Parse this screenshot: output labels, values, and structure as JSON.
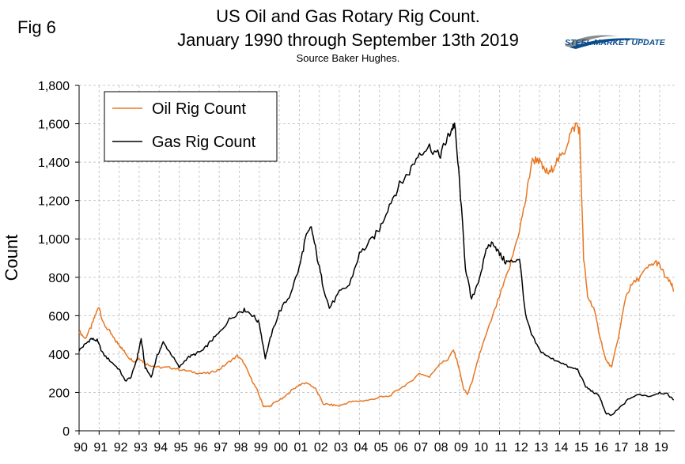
{
  "fig_label": "Fig 6",
  "logo": {
    "line1": "STEEL MARKET UPDATE"
  },
  "colors": {
    "oil": "#E87722",
    "gas": "#000000",
    "grid": "#c8c8c8",
    "accent": "#0a4d8c"
  },
  "chart_data": {
    "type": "line",
    "title": "US Oil and Gas Rotary Rig Count.",
    "subtitle": "January 1990 through September 13th 2019",
    "source": "Source Baker Hughes.",
    "xlabel": "",
    "ylabel": "Count",
    "xlim": [
      1990,
      2019.75
    ],
    "ylim": [
      0,
      1800
    ],
    "yticks": [
      0,
      200,
      400,
      600,
      800,
      1000,
      1200,
      1400,
      1600,
      1800
    ],
    "ytick_labels": [
      "0",
      "200",
      "400",
      "600",
      "800",
      "1,000",
      "1,200",
      "1,400",
      "1,600",
      "1,800"
    ],
    "xtick_labels": [
      "90",
      "91",
      "92",
      "93",
      "94",
      "95",
      "96",
      "97",
      "98",
      "99",
      "00",
      "01",
      "02",
      "03",
      "04",
      "05",
      "06",
      "07",
      "08",
      "09",
      "10",
      "11",
      "12",
      "13",
      "14",
      "15",
      "16",
      "17",
      "18",
      "19"
    ],
    "legend_position": "top-left",
    "series": [
      {
        "name": "Oil Rig Count",
        "color": "#E87722",
        "x": [
          1990.0,
          1990.3,
          1990.6,
          1990.8,
          1991.0,
          1991.2,
          1991.5,
          1991.8,
          1992.0,
          1992.2,
          1992.5,
          1992.8,
          1993.0,
          1993.3,
          1993.6,
          1994.0,
          1994.5,
          1995.0,
          1995.5,
          1996.0,
          1996.5,
          1997.0,
          1997.5,
          1997.9,
          1998.2,
          1998.6,
          1998.9,
          1999.2,
          1999.5,
          1999.8,
          2000.2,
          2000.6,
          2001.0,
          2001.4,
          2001.8,
          2002.2,
          2002.6,
          2003.0,
          2003.5,
          2004.0,
          2004.5,
          2005.0,
          2005.5,
          2006.0,
          2006.5,
          2007.0,
          2007.5,
          2008.0,
          2008.4,
          2008.7,
          2008.9,
          2009.2,
          2009.4,
          2009.7,
          2010.0,
          2010.5,
          2011.0,
          2011.5,
          2012.0,
          2012.3,
          2012.6,
          2012.9,
          2013.2,
          2013.5,
          2013.8,
          2014.2,
          2014.5,
          2014.85,
          2015.0,
          2015.2,
          2015.4,
          2015.7,
          2016.0,
          2016.3,
          2016.6,
          2017.0,
          2017.3,
          2017.6,
          2018.0,
          2018.4,
          2018.8,
          2019.0,
          2019.3,
          2019.6,
          2019.7
        ],
        "values": [
          520,
          480,
          540,
          600,
          650,
          560,
          520,
          470,
          450,
          420,
          380,
          360,
          380,
          350,
          340,
          330,
          330,
          320,
          310,
          300,
          300,
          320,
          360,
          390,
          360,
          270,
          210,
          130,
          125,
          150,
          170,
          210,
          240,
          250,
          220,
          140,
          135,
          130,
          150,
          155,
          160,
          175,
          180,
          220,
          250,
          300,
          280,
          350,
          370,
          420,
          360,
          220,
          190,
          280,
          400,
          550,
          700,
          850,
          1050,
          1200,
          1400,
          1420,
          1360,
          1340,
          1400,
          1440,
          1540,
          1600,
          1560,
          900,
          700,
          640,
          500,
          370,
          330,
          520,
          700,
          760,
          800,
          850,
          880,
          860,
          800,
          760,
          730
        ]
      },
      {
        "name": "Gas Rig Count",
        "color": "#000000",
        "x": [
          1990.0,
          1990.3,
          1990.6,
          1990.9,
          1991.2,
          1991.6,
          1992.0,
          1992.3,
          1992.6,
          1992.9,
          1993.1,
          1993.3,
          1993.6,
          1993.9,
          1994.2,
          1994.6,
          1995.0,
          1995.4,
          1995.8,
          1996.2,
          1996.6,
          1997.0,
          1997.5,
          1998.0,
          1998.3,
          1998.7,
          1999.0,
          1999.3,
          1999.6,
          2000.0,
          2000.5,
          2001.0,
          2001.3,
          2001.6,
          2001.9,
          2002.2,
          2002.5,
          2003.0,
          2003.5,
          2004.0,
          2004.5,
          2005.0,
          2005.5,
          2006.0,
          2006.5,
          2007.0,
          2007.5,
          2008.0,
          2008.3,
          2008.55,
          2008.75,
          2009.0,
          2009.3,
          2009.6,
          2010.0,
          2010.4,
          2010.7,
          2011.0,
          2011.3,
          2011.6,
          2012.0,
          2012.3,
          2012.6,
          2013.0,
          2013.5,
          2014.0,
          2014.5,
          2014.9,
          2015.3,
          2015.7,
          2016.0,
          2016.3,
          2016.6,
          2017.0,
          2017.5,
          2018.0,
          2018.5,
          2019.0,
          2019.4,
          2019.7
        ],
        "values": [
          420,
          450,
          480,
          470,
          400,
          360,
          320,
          260,
          280,
          380,
          480,
          330,
          280,
          390,
          460,
          400,
          330,
          380,
          400,
          420,
          470,
          510,
          580,
          620,
          630,
          600,
          560,
          380,
          500,
          620,
          700,
          850,
          1000,
          1060,
          900,
          750,
          640,
          720,
          760,
          920,
          980,
          1050,
          1180,
          1280,
          1350,
          1450,
          1480,
          1430,
          1500,
          1560,
          1600,
          1300,
          850,
          680,
          800,
          960,
          980,
          920,
          880,
          880,
          900,
          600,
          500,
          420,
          380,
          360,
          330,
          320,
          230,
          200,
          180,
          90,
          80,
          120,
          170,
          190,
          180,
          200,
          190,
          160
        ]
      }
    ]
  }
}
